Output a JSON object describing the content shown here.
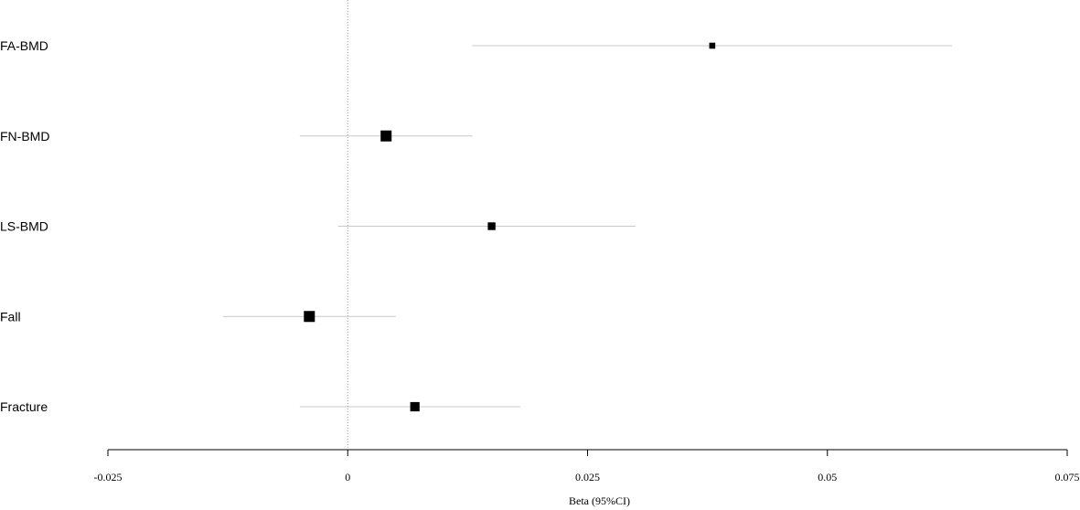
{
  "chart_data": {
    "type": "forest",
    "xlabel": "Beta (95%CI)",
    "xlim": [
      -0.025,
      0.075
    ],
    "ticks": [
      {
        "value": -0.025,
        "label": "-0.025"
      },
      {
        "value": 0,
        "label": "0"
      },
      {
        "value": 0.025,
        "label": "0.025"
      },
      {
        "value": 0.05,
        "label": "0.05"
      },
      {
        "value": 0.075,
        "label": "0.075"
      }
    ],
    "reference_line": 0,
    "rows": [
      {
        "label": "FA-BMD",
        "beta": 0.038,
        "ci_low": 0.013,
        "ci_high": 0.063,
        "weight": 0.55
      },
      {
        "label": "FN-BMD",
        "beta": 0.004,
        "ci_low": -0.005,
        "ci_high": 0.013,
        "weight": 1.0
      },
      {
        "label": "LS-BMD",
        "beta": 0.015,
        "ci_low": -0.001,
        "ci_high": 0.03,
        "weight": 0.7
      },
      {
        "label": "Fall",
        "beta": -0.004,
        "ci_low": -0.013,
        "ci_high": 0.005,
        "weight": 1.0
      },
      {
        "label": "Fracture",
        "beta": 0.007,
        "ci_low": -0.005,
        "ci_high": 0.018,
        "weight": 0.85
      }
    ],
    "colors": {
      "ci_line": "#c8c8c8",
      "point": "#000000",
      "axis": "#000000",
      "ref_line": "#999999"
    }
  }
}
